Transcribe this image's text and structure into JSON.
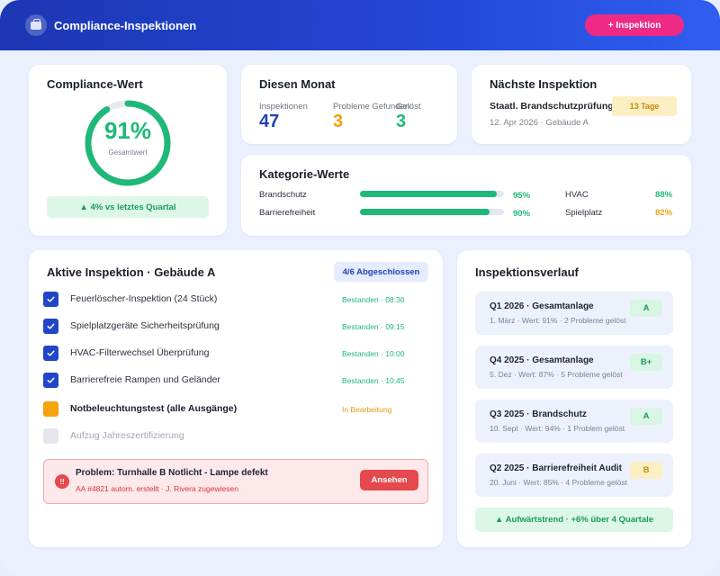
{
  "header": {
    "app_title": "Compliance-Inspektionen",
    "add_button": "+ Inspektion",
    "logo_icon": "briefcase-icon"
  },
  "compliance": {
    "title": "Compliance-Wert",
    "value": "91%",
    "value_fraction": 0.91,
    "subtitle": "Gesamtwert",
    "trend": "▲ 4% vs letztes Quartal"
  },
  "month": {
    "title": "Diesen Monat",
    "stats": [
      {
        "label": "Inspektionen",
        "value": "47",
        "color": "#2141b8"
      },
      {
        "label": "Probleme Gefunden",
        "value": "3",
        "color": "#f0a010"
      },
      {
        "label": "Gelöst",
        "value": "3",
        "color": "#1fb879"
      }
    ]
  },
  "next": {
    "title": "Nächste Inspektion",
    "name": "Staatl. Brandschutzprüfung",
    "meta": "12. Apr 2026 · Gebäude A",
    "badge": "13 Tage"
  },
  "categories": {
    "title": "Kategorie-Werte",
    "items": [
      {
        "name": "Brandschutz",
        "value": "95%",
        "fraction": 0.95,
        "color": "#1fb879"
      },
      {
        "name": "Barrierefreiheit",
        "value": "90%",
        "fraction": 0.9,
        "color": "#1fb879"
      },
      {
        "name": "HVAC",
        "value": "88%",
        "color": "#1fb879"
      },
      {
        "name": "Spielplatz",
        "value": "82%",
        "color": "#f0a010"
      }
    ]
  },
  "active": {
    "title": "Aktive Inspektion · Gebäude A",
    "badge": "4/6 Abgeschlossen",
    "tasks": [
      {
        "name": "Feuerlöscher-Inspektion (24 Stück)",
        "status": "Bestanden · 08:30",
        "state": "done"
      },
      {
        "name": "Spielplatzgeräte Sicherheitsprüfung",
        "status": "Bestanden · 09:15",
        "state": "done"
      },
      {
        "name": "HVAC-Filterwechsel Überprüfung",
        "status": "Bestanden · 10:00",
        "state": "done"
      },
      {
        "name": "Barrierefreie Rampen und Geländer",
        "status": "Bestanden · 10:45",
        "state": "done"
      },
      {
        "name": "Notbeleuchtungstest (alle Ausgänge)",
        "status": "In Bearbeitung",
        "state": "progress"
      },
      {
        "name": "Aufzug Jahreszertifizierung",
        "status": "",
        "state": "pending"
      }
    ],
    "colors": {
      "done": "#1fb879",
      "progress": "#e09a10"
    },
    "issue": {
      "icon_text": "!!",
      "title": "Problem: Turnhalle B Notlicht - Lampe defekt",
      "meta": "AA #4821 autom. erstellt · J. Rivera zugewiesen",
      "button": "Ansehen"
    }
  },
  "history": {
    "title": "Inspektionsverlauf",
    "items": [
      {
        "title": "Q1 2026 · Gesamtanlage",
        "meta": "1. März · Wert: 91% · 2 Probleme gelöst",
        "grade": "A",
        "grade_bg": "#d9f5e4",
        "grade_color": "#1a9b5e"
      },
      {
        "title": "Q4 2025 · Gesamtanlage",
        "meta": "5. Dez · Wert: 87% · 5 Probleme gelöst",
        "grade": "B+",
        "grade_bg": "#d9f5e4",
        "grade_color": "#1a9b5e"
      },
      {
        "title": "Q3 2025 · Brandschutz",
        "meta": "10. Sept · Wert: 94% · 1 Problem gelöst",
        "grade": "A",
        "grade_bg": "#d9f5e4",
        "grade_color": "#1a9b5e"
      },
      {
        "title": "Q2 2025 · Barrierefreiheit Audit",
        "meta": "20. Juni · Wert: 85% · 4 Probleme gelöst",
        "grade": "B",
        "grade_bg": "#fbefc3",
        "grade_color": "#c58a06"
      }
    ],
    "trend": "▲ Aufwärtstrend · +6% über 4 Quartale"
  }
}
